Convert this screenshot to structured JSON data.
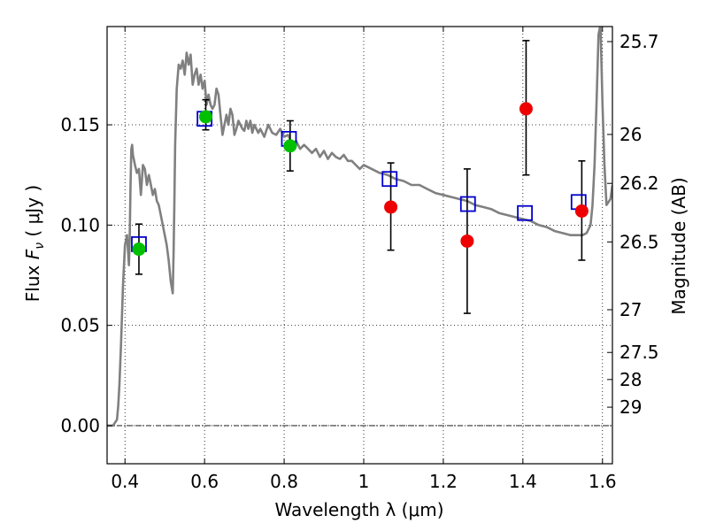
{
  "chart_data": {
    "type": "scatter",
    "xlabel": "Wavelength  λ (μm)",
    "ylabel_prefix": "Flux  ",
    "ylabel_var": "F",
    "ylabel_sub": "ν",
    "ylabel_suffix": " ( μJy )",
    "y2label": "Magnitude (AB)",
    "xlim": [
      0.355,
      1.625
    ],
    "ylim": [
      -0.019,
      0.199
    ],
    "grid": true,
    "x_ticks": [
      {
        "value": 0.4,
        "label": "0.4"
      },
      {
        "value": 0.6,
        "label": "0.6"
      },
      {
        "value": 0.8,
        "label": "0.8"
      },
      {
        "value": 1.0,
        "label": "1"
      },
      {
        "value": 1.2,
        "label": "1.2"
      },
      {
        "value": 1.4,
        "label": "1.4"
      },
      {
        "value": 1.6,
        "label": "1.6"
      }
    ],
    "y_ticks": [
      {
        "value": 0.0,
        "label": "0.00"
      },
      {
        "value": 0.05,
        "label": "0.05"
      },
      {
        "value": 0.1,
        "label": "0.10"
      },
      {
        "value": 0.15,
        "label": "0.15"
      }
    ],
    "y2_ticks": [
      {
        "label": "25.7",
        "flux": 0.1915
      },
      {
        "label": "26",
        "flux": 0.1452
      },
      {
        "label": "26.2",
        "flux": 0.1208
      },
      {
        "label": "26.5",
        "flux": 0.0916
      },
      {
        "label": "27",
        "flux": 0.0578
      },
      {
        "label": "27.5",
        "flux": 0.0365
      },
      {
        "label": "28",
        "flux": 0.023
      },
      {
        "label": "29",
        "flux": 0.0092
      }
    ],
    "series": [
      {
        "kind": "line",
        "color": "#808080",
        "x": [
          0.355,
          0.37,
          0.38,
          0.383,
          0.386,
          0.39,
          0.395,
          0.4,
          0.405,
          0.41,
          0.412,
          0.414,
          0.416,
          0.418,
          0.42,
          0.425,
          0.43,
          0.435,
          0.44,
          0.445,
          0.45,
          0.455,
          0.46,
          0.465,
          0.47,
          0.475,
          0.48,
          0.485,
          0.49,
          0.495,
          0.5,
          0.505,
          0.51,
          0.515,
          0.52,
          0.522,
          0.524,
          0.526,
          0.53,
          0.535,
          0.54,
          0.545,
          0.55,
          0.555,
          0.56,
          0.565,
          0.57,
          0.575,
          0.58,
          0.585,
          0.59,
          0.595,
          0.6,
          0.605,
          0.61,
          0.615,
          0.62,
          0.625,
          0.63,
          0.635,
          0.64,
          0.645,
          0.65,
          0.655,
          0.66,
          0.665,
          0.67,
          0.675,
          0.68,
          0.685,
          0.69,
          0.695,
          0.7,
          0.705,
          0.71,
          0.715,
          0.72,
          0.725,
          0.73,
          0.735,
          0.74,
          0.75,
          0.76,
          0.77,
          0.78,
          0.79,
          0.8,
          0.81,
          0.82,
          0.83,
          0.84,
          0.85,
          0.86,
          0.87,
          0.88,
          0.89,
          0.9,
          0.91,
          0.92,
          0.93,
          0.94,
          0.95,
          0.96,
          0.97,
          0.98,
          0.99,
          1.0,
          1.02,
          1.04,
          1.06,
          1.08,
          1.1,
          1.12,
          1.14,
          1.16,
          1.18,
          1.2,
          1.22,
          1.24,
          1.26,
          1.28,
          1.3,
          1.32,
          1.34,
          1.36,
          1.38,
          1.4,
          1.42,
          1.44,
          1.46,
          1.48,
          1.5,
          1.52,
          1.54,
          1.55,
          1.56,
          1.57,
          1.575,
          1.58,
          1.585,
          1.59,
          1.595,
          1.6,
          1.605,
          1.61,
          1.62,
          1.625
        ],
        "y": [
          0.0,
          0.0,
          0.003,
          0.01,
          0.02,
          0.04,
          0.07,
          0.09,
          0.095,
          0.08,
          0.095,
          0.12,
          0.138,
          0.14,
          0.135,
          0.13,
          0.126,
          0.128,
          0.115,
          0.13,
          0.128,
          0.12,
          0.125,
          0.12,
          0.115,
          0.118,
          0.112,
          0.11,
          0.105,
          0.1,
          0.095,
          0.09,
          0.082,
          0.072,
          0.066,
          0.085,
          0.11,
          0.14,
          0.168,
          0.18,
          0.178,
          0.182,
          0.175,
          0.186,
          0.18,
          0.185,
          0.17,
          0.175,
          0.178,
          0.17,
          0.175,
          0.168,
          0.172,
          0.16,
          0.165,
          0.16,
          0.158,
          0.16,
          0.168,
          0.165,
          0.155,
          0.145,
          0.15,
          0.155,
          0.15,
          0.158,
          0.155,
          0.145,
          0.148,
          0.152,
          0.15,
          0.148,
          0.147,
          0.152,
          0.148,
          0.152,
          0.146,
          0.15,
          0.148,
          0.146,
          0.148,
          0.144,
          0.15,
          0.146,
          0.145,
          0.148,
          0.144,
          0.145,
          0.14,
          0.142,
          0.138,
          0.14,
          0.138,
          0.136,
          0.138,
          0.134,
          0.137,
          0.133,
          0.136,
          0.134,
          0.133,
          0.135,
          0.132,
          0.132,
          0.13,
          0.128,
          0.13,
          0.128,
          0.126,
          0.125,
          0.123,
          0.122,
          0.12,
          0.12,
          0.118,
          0.116,
          0.115,
          0.114,
          0.113,
          0.112,
          0.11,
          0.109,
          0.108,
          0.106,
          0.105,
          0.104,
          0.103,
          0.102,
          0.1,
          0.099,
          0.097,
          0.096,
          0.095,
          0.095,
          0.095,
          0.096,
          0.1,
          0.11,
          0.13,
          0.16,
          0.195,
          0.2,
          0.16,
          0.13,
          0.11,
          0.113,
          0.12
        ]
      },
      {
        "kind": "scatter",
        "marker": "square-open",
        "color": "#0000cc",
        "x": [
          0.435,
          0.6,
          0.812,
          1.065,
          1.262,
          1.405,
          1.54
        ],
        "y": [
          0.0905,
          0.153,
          0.143,
          0.123,
          0.1105,
          0.106,
          0.1115
        ]
      },
      {
        "kind": "scatter",
        "marker": "circle",
        "color": "#00c000",
        "x": [
          0.435,
          0.603,
          0.815
        ],
        "y": [
          0.088,
          0.154,
          0.1395
        ],
        "yerr": [
          [
            0.0125,
            0.0125
          ],
          [
            0.0065,
            0.0085
          ],
          [
            0.0125,
            0.0125
          ]
        ]
      },
      {
        "kind": "scatter",
        "marker": "circle",
        "color": "#ee0000",
        "x": [
          1.068,
          1.26,
          1.408,
          1.548
        ],
        "y": [
          0.109,
          0.092,
          0.158,
          0.107
        ],
        "yerr": [
          [
            0.0215,
            0.022
          ],
          [
            0.036,
            0.036
          ],
          [
            0.033,
            0.034
          ],
          [
            0.0245,
            0.025
          ]
        ]
      }
    ]
  }
}
